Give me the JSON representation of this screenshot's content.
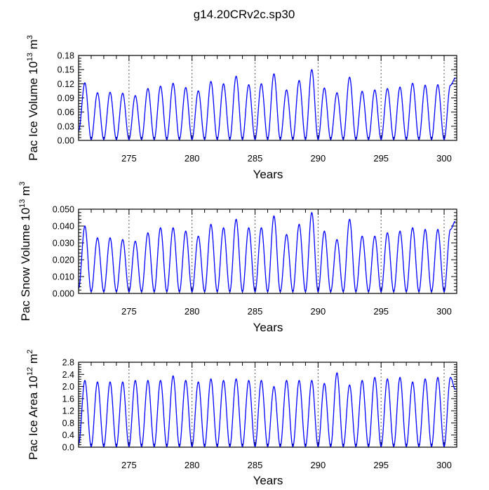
{
  "title": "g14.20CRv2c.sp30",
  "colors": {
    "line": "#0000ff",
    "axis": "#000000",
    "refline": "#555555"
  },
  "chart_data": [
    {
      "type": "line",
      "panel": "ice-volume",
      "ylabel_main": "Pac Ice Volume 10",
      "ylabel_exp1": "13",
      "ylabel_mid": " m",
      "ylabel_exp2": "3",
      "xlabel": "Years",
      "xlim": [
        271,
        301
      ],
      "ylim": [
        0,
        0.18
      ],
      "yticks": [
        0.0,
        0.03,
        0.06,
        0.09,
        0.12,
        0.15,
        0.18
      ],
      "ytick_labels": [
        "0.00",
        "0.03",
        "0.06",
        "0.09",
        "0.12",
        "0.15",
        "0.18"
      ],
      "xticks": [
        275,
        280,
        285,
        290,
        295,
        300
      ],
      "xtick_labels": [
        "275",
        "280",
        "285",
        "290",
        "295",
        "300"
      ],
      "reference_lines_x": [
        275,
        280,
        285,
        290,
        295,
        300
      ],
      "series": [
        {
          "name": "Pac Ice Volume",
          "x": [
            271.0,
            271.5,
            272.0,
            272.5,
            273.0,
            273.5,
            274.0,
            274.5,
            275.0,
            275.5,
            276.0,
            276.5,
            277.0,
            277.5,
            278.0,
            278.5,
            279.0,
            279.5,
            280.0,
            280.5,
            281.0,
            281.5,
            282.0,
            282.5,
            283.0,
            283.5,
            284.0,
            284.5,
            285.0,
            285.5,
            286.0,
            286.5,
            287.0,
            287.5,
            288.0,
            288.5,
            289.0,
            289.5,
            290.0,
            290.5,
            291.0,
            291.5,
            292.0,
            292.5,
            293.0,
            293.5,
            294.0,
            294.5,
            295.0,
            295.5,
            296.0,
            296.5,
            297.0,
            297.5,
            298.0,
            298.5,
            299.0,
            299.5,
            300.0,
            300.5,
            300.9
          ],
          "y": [
            0.02,
            0.122,
            0.002,
            0.101,
            0.002,
            0.102,
            0.002,
            0.1,
            0.002,
            0.095,
            0.002,
            0.11,
            0.002,
            0.115,
            0.002,
            0.121,
            0.002,
            0.112,
            0.002,
            0.105,
            0.002,
            0.125,
            0.002,
            0.12,
            0.002,
            0.136,
            0.002,
            0.118,
            0.002,
            0.12,
            0.002,
            0.141,
            0.002,
            0.107,
            0.002,
            0.127,
            0.002,
            0.15,
            0.002,
            0.111,
            0.002,
            0.101,
            0.002,
            0.134,
            0.002,
            0.104,
            0.002,
            0.107,
            0.002,
            0.11,
            0.002,
            0.113,
            0.002,
            0.121,
            0.002,
            0.117,
            0.002,
            0.118,
            0.002,
            0.117,
            0.132
          ]
        }
      ]
    },
    {
      "type": "line",
      "panel": "snow-volume",
      "ylabel_main": "Pac Snow Volume 10",
      "ylabel_exp1": "13",
      "ylabel_mid": " m",
      "ylabel_exp2": "3",
      "xlabel": "Years",
      "xlim": [
        271,
        301
      ],
      "ylim": [
        0,
        0.05
      ],
      "yticks": [
        0.0,
        0.01,
        0.02,
        0.03,
        0.04,
        0.05
      ],
      "ytick_labels": [
        "0.000",
        "0.010",
        "0.020",
        "0.030",
        "0.040",
        "0.050"
      ],
      "xticks": [
        275,
        280,
        285,
        290,
        295,
        300
      ],
      "xtick_labels": [
        "275",
        "280",
        "285",
        "290",
        "295",
        "300"
      ],
      "reference_lines_x": [
        275,
        280,
        285,
        290,
        295,
        300
      ],
      "series": [
        {
          "name": "Pac Snow Volume",
          "x": [
            271.0,
            271.5,
            272.0,
            272.5,
            273.0,
            273.5,
            274.0,
            274.5,
            275.0,
            275.5,
            276.0,
            276.5,
            277.0,
            277.5,
            278.0,
            278.5,
            279.0,
            279.5,
            280.0,
            280.5,
            281.0,
            281.5,
            282.0,
            282.5,
            283.0,
            283.5,
            284.0,
            284.5,
            285.0,
            285.5,
            286.0,
            286.5,
            287.0,
            287.5,
            288.0,
            288.5,
            289.0,
            289.5,
            290.0,
            290.5,
            291.0,
            291.5,
            292.0,
            292.5,
            293.0,
            293.5,
            294.0,
            294.5,
            295.0,
            295.5,
            296.0,
            296.5,
            297.0,
            297.5,
            298.0,
            298.5,
            299.0,
            299.5,
            300.0,
            300.5,
            300.9
          ],
          "y": [
            0.003,
            0.04,
            0.001,
            0.033,
            0.001,
            0.033,
            0.001,
            0.032,
            0.001,
            0.031,
            0.001,
            0.036,
            0.001,
            0.039,
            0.001,
            0.039,
            0.001,
            0.037,
            0.001,
            0.034,
            0.001,
            0.041,
            0.001,
            0.039,
            0.001,
            0.044,
            0.001,
            0.039,
            0.001,
            0.039,
            0.001,
            0.046,
            0.001,
            0.035,
            0.001,
            0.041,
            0.001,
            0.048,
            0.001,
            0.037,
            0.001,
            0.032,
            0.001,
            0.044,
            0.001,
            0.034,
            0.001,
            0.034,
            0.001,
            0.036,
            0.001,
            0.037,
            0.001,
            0.039,
            0.001,
            0.038,
            0.001,
            0.038,
            0.001,
            0.038,
            0.043
          ]
        }
      ]
    },
    {
      "type": "line",
      "panel": "ice-area",
      "ylabel_main": "Pac Ice Area 10",
      "ylabel_exp1": "12",
      "ylabel_mid": " m",
      "ylabel_exp2": "2",
      "xlabel": "Years",
      "xlim": [
        271,
        301
      ],
      "ylim": [
        0,
        2.8
      ],
      "yticks": [
        0.0,
        0.4,
        0.8,
        1.2,
        1.6,
        2.0,
        2.4,
        2.8
      ],
      "ytick_labels": [
        "0.0",
        "0.4",
        "0.8",
        "1.2",
        "1.6",
        "2.0",
        "2.4",
        "2.8"
      ],
      "xticks": [
        275,
        280,
        285,
        290,
        295,
        300
      ],
      "xtick_labels": [
        "275",
        "280",
        "285",
        "290",
        "295",
        "300"
      ],
      "reference_lines_x": [
        275,
        280,
        285,
        290,
        295,
        300
      ],
      "series": [
        {
          "name": "Pac Ice Area",
          "x": [
            271.0,
            271.5,
            272.0,
            272.5,
            273.0,
            273.5,
            274.0,
            274.5,
            275.0,
            275.5,
            276.0,
            276.5,
            277.0,
            277.5,
            278.0,
            278.5,
            279.0,
            279.5,
            280.0,
            280.5,
            281.0,
            281.5,
            282.0,
            282.5,
            283.0,
            283.5,
            284.0,
            284.5,
            285.0,
            285.5,
            286.0,
            286.5,
            287.0,
            287.5,
            288.0,
            288.5,
            289.0,
            289.5,
            290.0,
            290.5,
            291.0,
            291.5,
            292.0,
            292.5,
            293.0,
            293.5,
            294.0,
            294.5,
            295.0,
            295.5,
            296.0,
            296.5,
            297.0,
            297.5,
            298.0,
            298.5,
            299.0,
            299.5,
            300.0,
            300.5,
            300.9
          ],
          "y": [
            0.1,
            2.2,
            0.02,
            2.15,
            0.02,
            2.15,
            0.02,
            2.15,
            0.02,
            2.2,
            0.02,
            2.2,
            0.02,
            2.2,
            0.02,
            2.35,
            0.02,
            2.2,
            0.02,
            2.15,
            0.02,
            2.25,
            0.02,
            2.2,
            0.02,
            2.25,
            0.02,
            2.2,
            0.02,
            2.2,
            0.02,
            2.0,
            0.02,
            2.2,
            0.02,
            2.2,
            0.02,
            2.2,
            0.02,
            2.1,
            0.02,
            2.45,
            0.02,
            2.05,
            0.02,
            2.2,
            0.02,
            2.3,
            0.02,
            2.25,
            0.02,
            2.3,
            0.02,
            2.15,
            0.02,
            2.25,
            0.02,
            2.3,
            0.02,
            2.3,
            1.9
          ]
        }
      ]
    }
  ]
}
